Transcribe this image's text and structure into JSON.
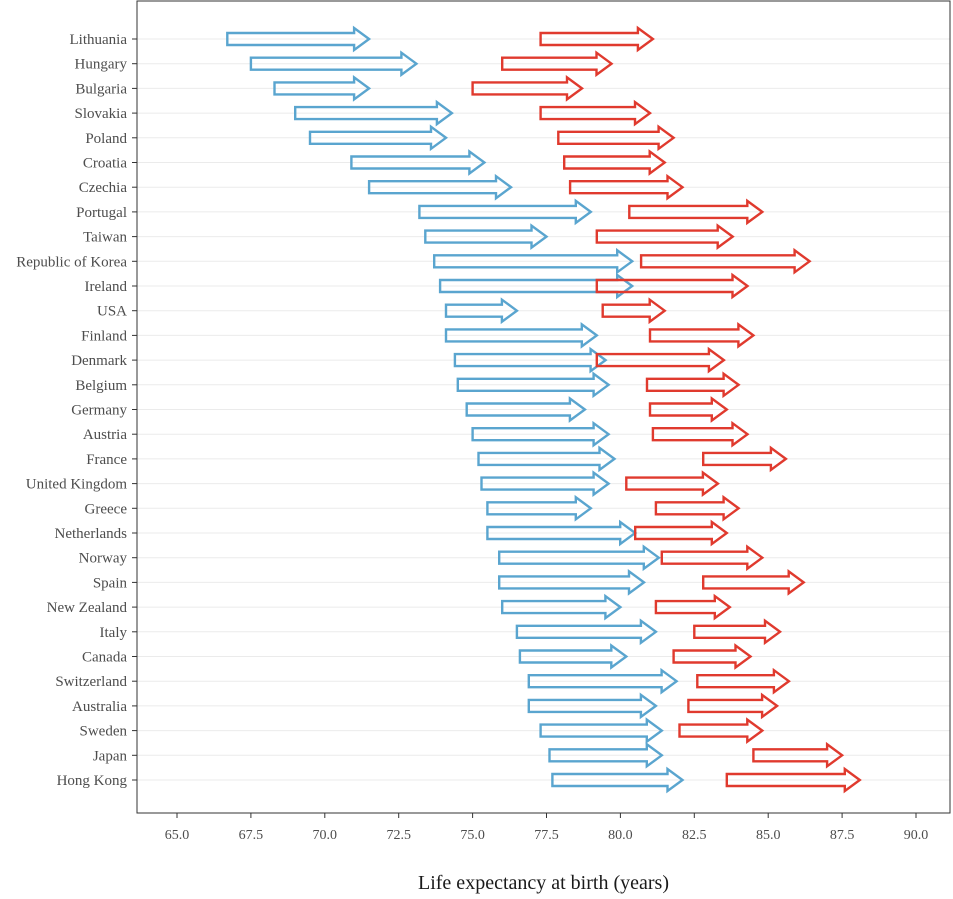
{
  "chart_data": {
    "type": "arrow",
    "xlabel": "Life expectancy at birth (years)",
    "ylabel": "",
    "xlim": [
      63.7,
      91.2
    ],
    "xticks": [
      "65.0",
      "67.5",
      "70.0",
      "72.5",
      "75.0",
      "77.5",
      "80.0",
      "82.5",
      "85.0",
      "87.5",
      "90.0"
    ],
    "grid": true,
    "legend": "none",
    "categories": [
      "Lithuania",
      "Hungary",
      "Bulgaria",
      "Slovakia",
      "Poland",
      "Croatia",
      "Czechia",
      "Portugal",
      "Taiwan",
      "Republic of Korea",
      "Ireland",
      "USA",
      "Finland",
      "Denmark",
      "Belgium",
      "Germany",
      "Austria",
      "France",
      "United Kingdom",
      "Greece",
      "Netherlands",
      "Norway",
      "Spain",
      "New Zealand",
      "Italy",
      "Canada",
      "Switzerland",
      "Australia",
      "Sweden",
      "Japan",
      "Hong Kong"
    ],
    "series": [
      {
        "color": "#5aa5cf",
        "start": [
          66.7,
          67.5,
          68.3,
          69.0,
          69.5,
          70.9,
          71.5,
          73.2,
          73.4,
          73.7,
          73.9,
          74.1,
          74.1,
          74.4,
          74.5,
          74.8,
          75.0,
          75.2,
          75.3,
          75.5,
          75.5,
          75.9,
          75.9,
          76.0,
          76.5,
          76.6,
          76.9,
          76.9,
          77.3,
          77.6,
          77.7
        ],
        "end": [
          71.5,
          73.1,
          71.5,
          74.3,
          74.1,
          75.4,
          76.3,
          79.0,
          77.5,
          80.4,
          80.4,
          76.5,
          79.2,
          79.5,
          79.6,
          78.8,
          79.6,
          79.8,
          79.6,
          79.0,
          80.5,
          81.3,
          80.8,
          80.0,
          81.2,
          80.2,
          81.9,
          81.2,
          81.4,
          81.4,
          82.1
        ]
      },
      {
        "color": "#e03a2e",
        "start": [
          77.3,
          76.0,
          75.0,
          77.3,
          77.9,
          78.1,
          78.3,
          80.3,
          79.2,
          80.7,
          79.2,
          79.4,
          81.0,
          79.2,
          80.9,
          81.0,
          81.1,
          82.8,
          80.2,
          81.2,
          80.5,
          81.4,
          82.8,
          81.2,
          82.5,
          81.8,
          82.6,
          82.3,
          82.0,
          84.5,
          83.6
        ],
        "end": [
          81.1,
          79.7,
          78.7,
          81.0,
          81.8,
          81.5,
          82.1,
          84.8,
          83.8,
          86.4,
          84.3,
          81.5,
          84.5,
          83.5,
          84.0,
          83.6,
          84.3,
          85.6,
          83.3,
          84.0,
          83.6,
          84.8,
          86.2,
          83.7,
          85.4,
          84.4,
          85.7,
          85.3,
          84.8,
          87.5,
          88.1
        ]
      }
    ]
  }
}
